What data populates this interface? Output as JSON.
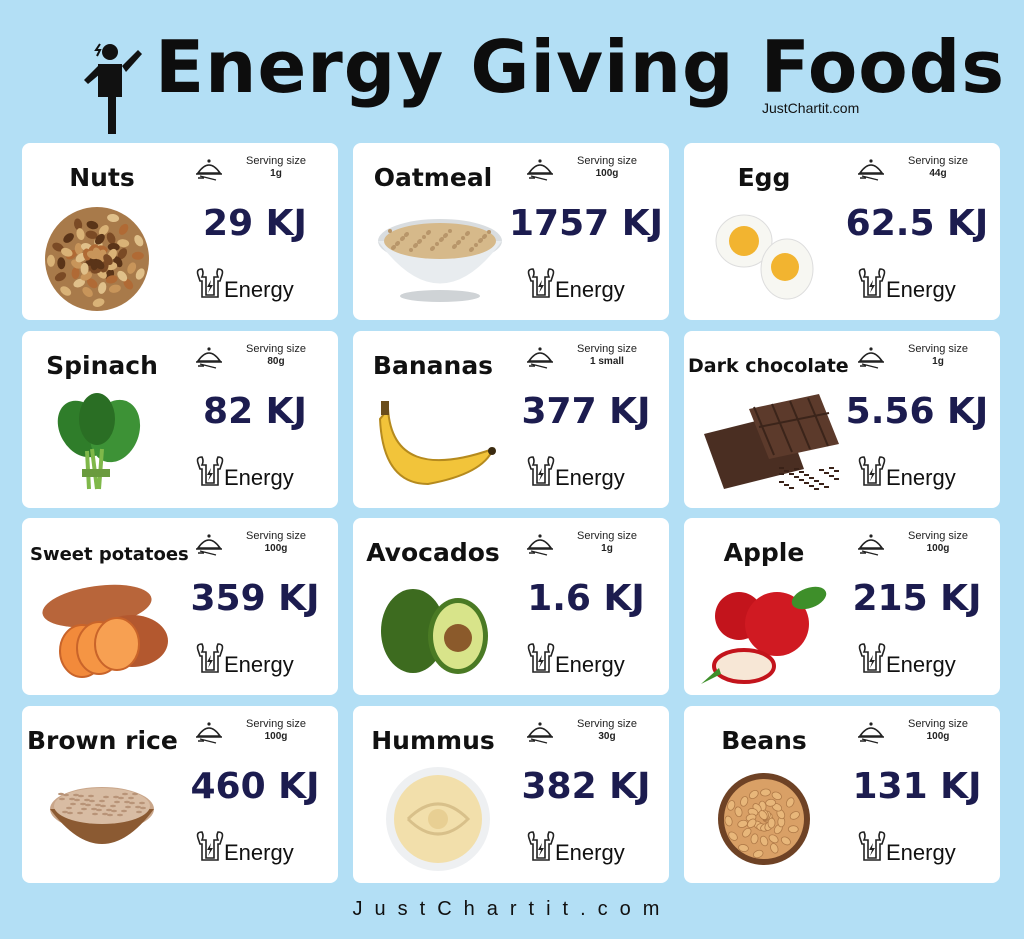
{
  "header": {
    "title": "Energy Giving Foods",
    "brand": "JustChartit.com"
  },
  "serving_label": "Serving size",
  "energy_label": "Energy",
  "foods": [
    {
      "name": "Nuts",
      "serving": "1g",
      "energy": "29 KJ",
      "picture": "nuts-mix"
    },
    {
      "name": "Oatmeal",
      "serving": "100g",
      "energy": "1757 KJ",
      "picture": "oatmeal-bowl"
    },
    {
      "name": "Egg",
      "serving": "44g",
      "energy": "62.5 KJ",
      "picture": "boiled-egg"
    },
    {
      "name": "Spinach",
      "serving": "80g",
      "energy": "82 KJ",
      "picture": "spinach-bunch"
    },
    {
      "name": "Bananas",
      "serving": "1 small",
      "energy": "377 KJ",
      "picture": "banana"
    },
    {
      "name": "Dark chocolate",
      "serving": "1g",
      "energy": "5.56 KJ",
      "picture": "chocolate-bar"
    },
    {
      "name": "Sweet potatoes",
      "serving": "100g",
      "energy": "359 KJ",
      "picture": "sweet-potato"
    },
    {
      "name": "Avocados",
      "serving": "1g",
      "energy": "1.6 KJ",
      "picture": "avocado"
    },
    {
      "name": "Apple",
      "serving": "100g",
      "energy": "215 KJ",
      "picture": "apples"
    },
    {
      "name": "Brown rice",
      "serving": "100g",
      "energy": "460 KJ",
      "picture": "rice-bowl"
    },
    {
      "name": "Hummus",
      "serving": "30g",
      "energy": "382 KJ",
      "picture": "hummus-bowl"
    },
    {
      "name": "Beans",
      "serving": "100g",
      "energy": "131 KJ",
      "picture": "beans-bowl"
    }
  ],
  "footer": "JustChartit.com",
  "colors": {
    "background": "#b3dff5",
    "card": "#ffffff",
    "energy_value": "#1c1c4f"
  }
}
